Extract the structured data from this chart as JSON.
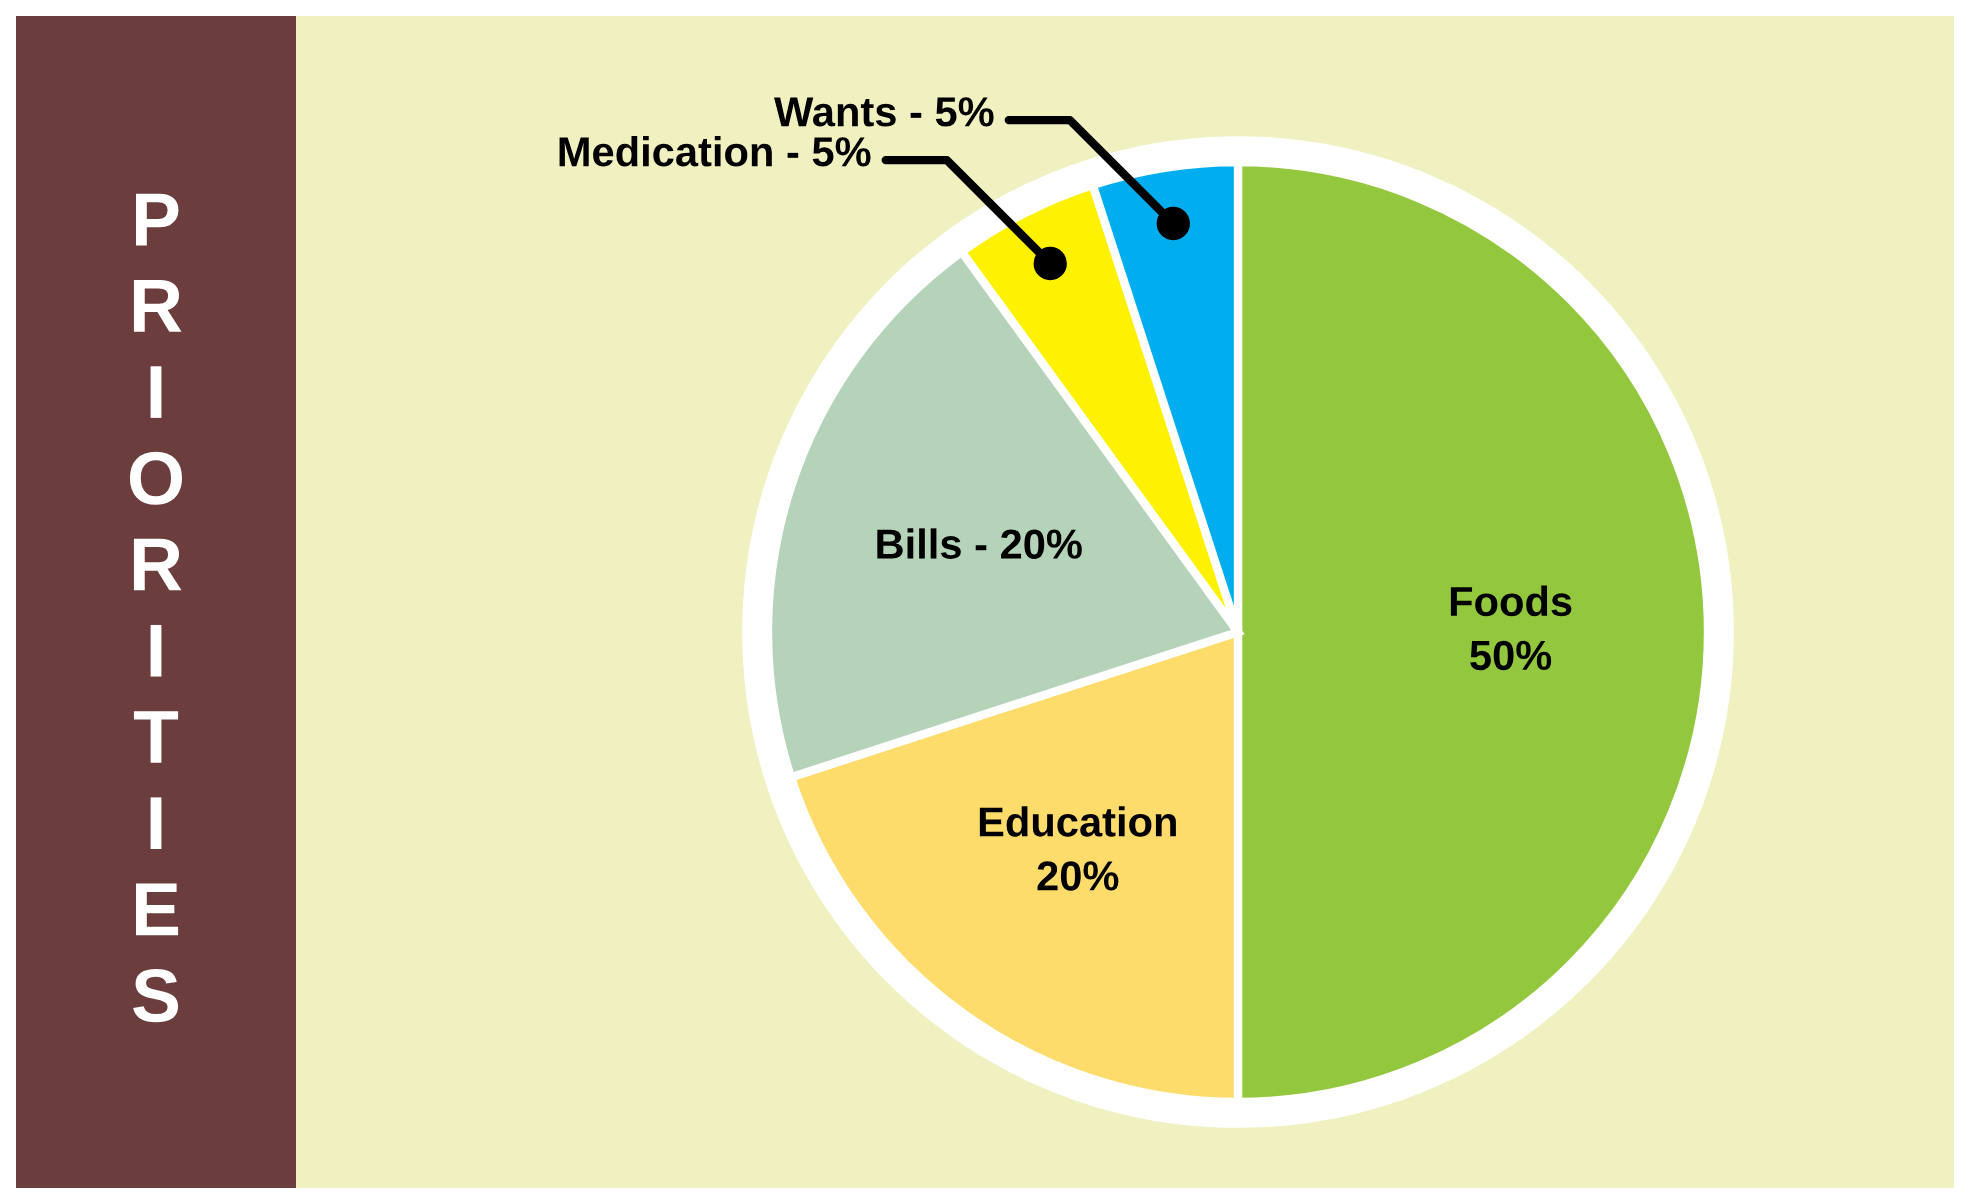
{
  "chart_data": {
    "type": "pie",
    "title": "PRIORITIES",
    "categories": [
      "Foods",
      "Education",
      "Bills",
      "Medication",
      "Wants"
    ],
    "values": [
      50,
      20,
      20,
      5,
      5
    ],
    "colors": [
      "#93c83e",
      "#fedc6b",
      "#b5d3b9",
      "#fff200",
      "#00aeef"
    ],
    "value_labels": [
      "50%",
      "20%",
      "20%",
      "5%",
      "5%"
    ],
    "legend": false
  }
}
